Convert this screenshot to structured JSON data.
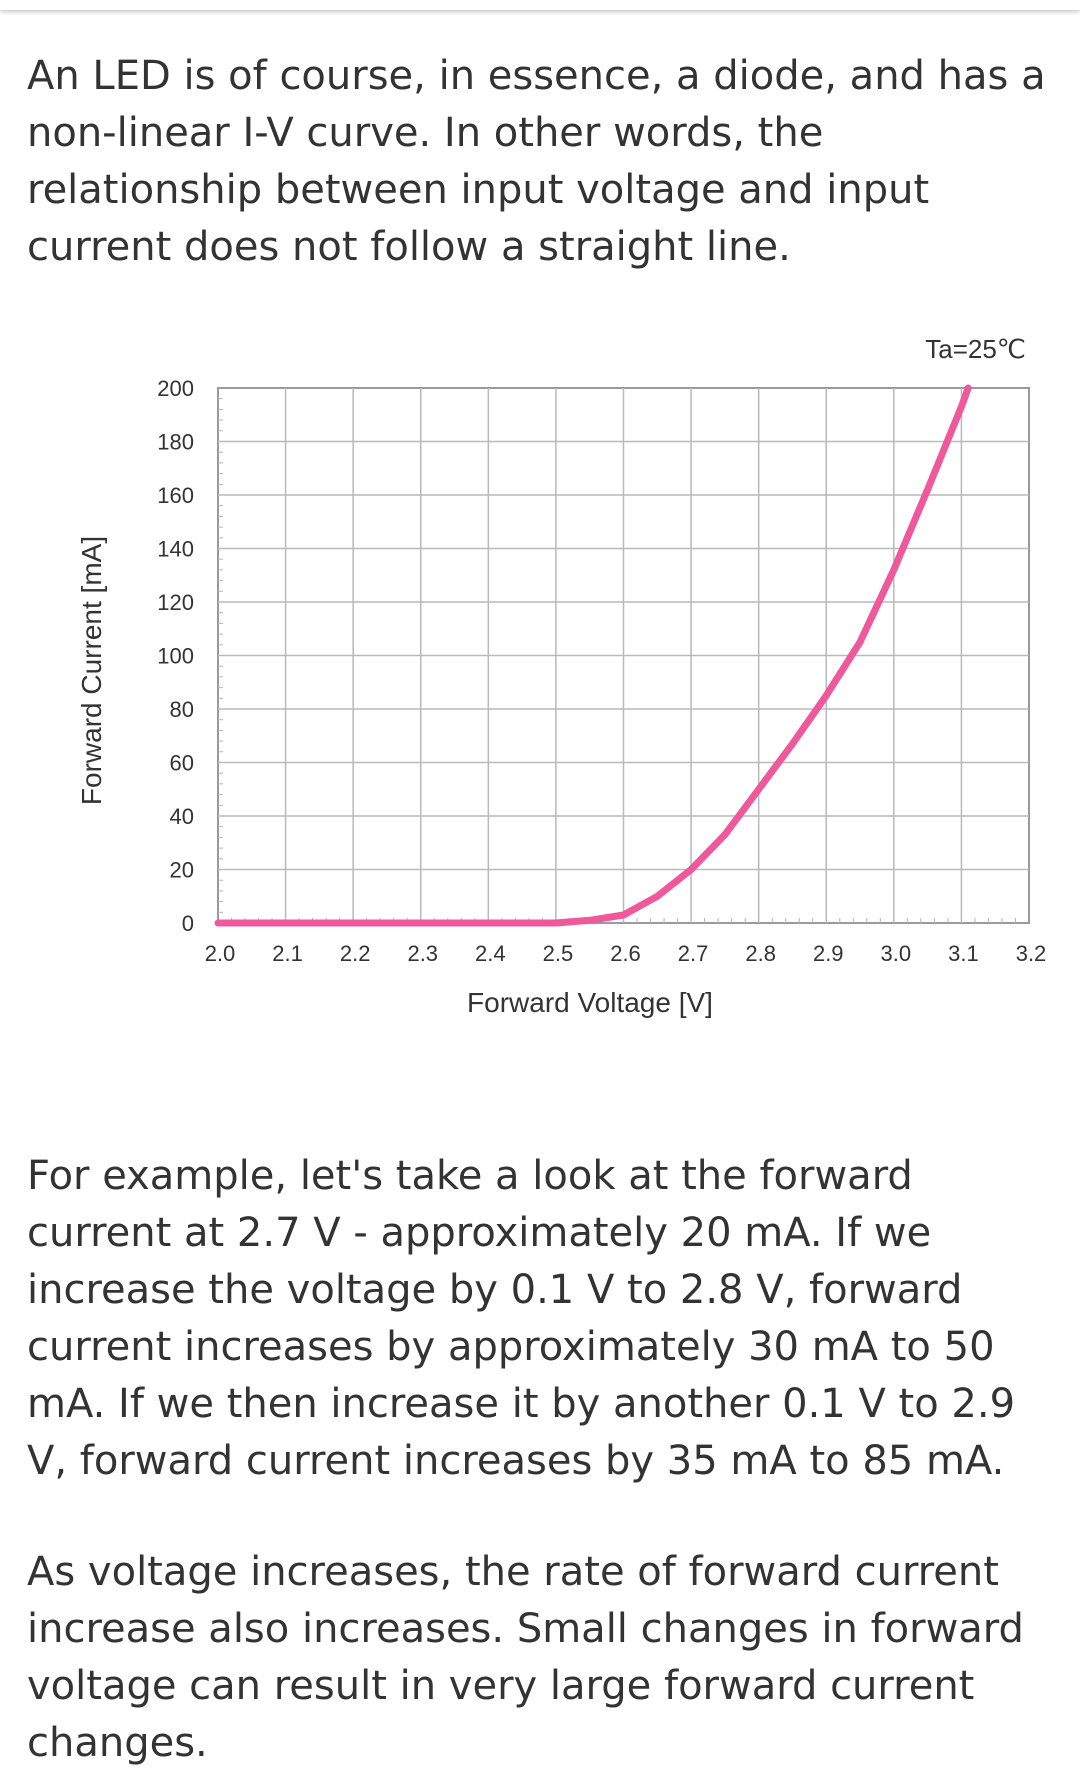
{
  "text": {
    "paragraph_1": "An LED is of course, in essence, a diode, and has a non-linear I-V curve. In other words, the relationship between input voltage and input current does not follow a straight line.",
    "paragraph_2": "For example, let's take a look at the forward current at 2.7 V - approximately 20 mA. If we increase the voltage by 0.1 V to 2.8 V, forward current increases by approximately 30 mA to 50 mA. If we then increase it by another 0.1 V to 2.9 V, forward current increases by 35 mA to 85 mA.",
    "paragraph_3": "As voltage increases, the rate of forward current increase also increases. Small changes in forward voltage can result in very large forward current changes."
  },
  "chart_data": {
    "type": "line",
    "annotation": "Ta=25℃",
    "xlabel": "Forward Voltage [V]",
    "ylabel": "Forward Current [mA]",
    "xlim": [
      2.0,
      3.2
    ],
    "ylim": [
      0,
      200
    ],
    "x_ticks": [
      "2.0",
      "2.1",
      "2.2",
      "2.3",
      "2.4",
      "2.5",
      "2.6",
      "2.7",
      "2.8",
      "2.9",
      "3.0",
      "3.1",
      "3.2"
    ],
    "y_ticks": [
      "0",
      "20",
      "40",
      "60",
      "80",
      "100",
      "120",
      "140",
      "160",
      "180",
      "200"
    ],
    "grid": true,
    "line_color": "#f0589c",
    "series": [
      {
        "x": [
          2.0,
          2.3,
          2.5,
          2.55,
          2.6,
          2.65,
          2.7,
          2.75,
          2.8,
          2.85,
          2.9,
          2.95,
          3.0,
          3.05,
          3.1,
          3.11
        ],
        "y": [
          0,
          0,
          0,
          1,
          3,
          10,
          20,
          33,
          50,
          67,
          85,
          105,
          132,
          162,
          193,
          200
        ]
      }
    ]
  }
}
